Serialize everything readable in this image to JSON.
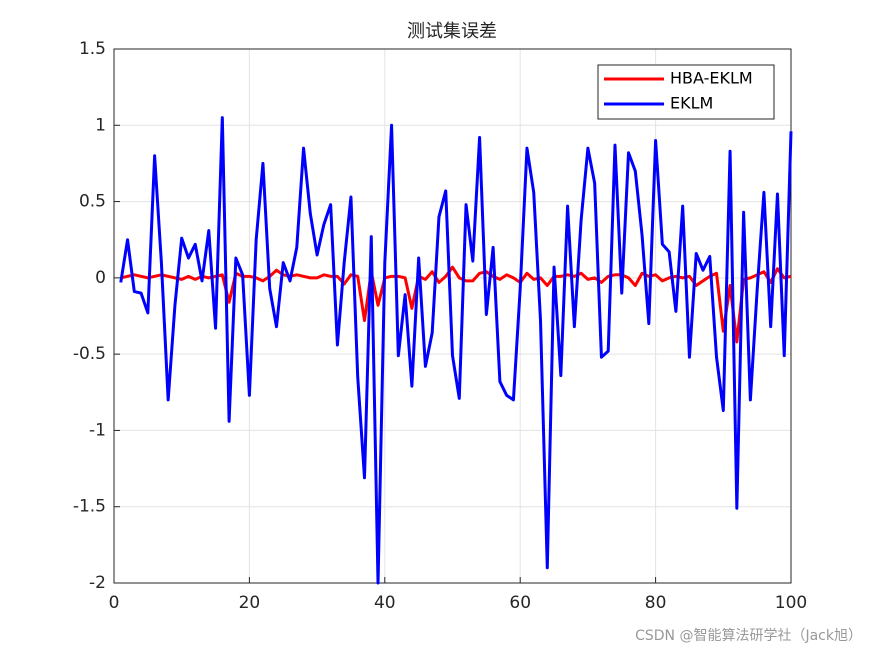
{
  "chart_data": {
    "type": "line",
    "title": "测试集误差",
    "x": [
      1,
      2,
      3,
      4,
      5,
      6,
      7,
      8,
      9,
      10,
      11,
      12,
      13,
      14,
      15,
      16,
      17,
      18,
      19,
      20,
      21,
      22,
      23,
      24,
      25,
      26,
      27,
      28,
      29,
      30,
      31,
      32,
      33,
      34,
      35,
      36,
      37,
      38,
      39,
      40,
      41,
      42,
      43,
      44,
      45,
      46,
      47,
      48,
      49,
      50,
      51,
      52,
      53,
      54,
      55,
      56,
      57,
      58,
      59,
      60,
      61,
      62,
      63,
      64,
      65,
      66,
      67,
      68,
      69,
      70,
      71,
      72,
      73,
      74,
      75,
      76,
      77,
      78,
      79,
      80,
      81,
      82,
      83,
      84,
      85,
      86,
      87,
      88,
      89,
      90,
      91,
      92,
      93,
      94,
      95,
      96,
      97,
      98,
      99,
      100
    ],
    "series": [
      {
        "name": "HBA-EKLM",
        "color": "#ff0000",
        "values": [
          0,
          0.01,
          0.02,
          0.01,
          0,
          0.01,
          0.02,
          0.01,
          0,
          -0.01,
          0.01,
          -0.01,
          0.01,
          0,
          0.01,
          0.02,
          -0.16,
          0.03,
          0.01,
          0.01,
          0,
          -0.02,
          0.01,
          0.05,
          0.02,
          0.01,
          0.02,
          0.01,
          0,
          0,
          0.02,
          0.01,
          0.01,
          -0.04,
          0.02,
          0.01,
          -0.28,
          0.04,
          -0.18,
          0,
          0.01,
          0.01,
          0,
          -0.2,
          0.01,
          -0.01,
          0.04,
          -0.03,
          0.01,
          0.07,
          0,
          -0.02,
          -0.02,
          0.03,
          0.04,
          0.01,
          -0.01,
          0.02,
          0,
          -0.03,
          0.03,
          -0.01,
          0,
          -0.05,
          0.01,
          0.01,
          0.02,
          0.01,
          0.03,
          -0.01,
          0,
          -0.03,
          0.01,
          0.02,
          0.02,
          0,
          -0.05,
          0.03,
          0.01,
          0.02,
          -0.02,
          0,
          0.01,
          0,
          0.01,
          -0.05,
          -0.02,
          0.01,
          0.03,
          -0.35,
          -0.05,
          -0.42,
          -0.01,
          0,
          0.02,
          0.04,
          -0.03,
          0.06,
          0,
          0.01
        ]
      },
      {
        "name": "EKLM",
        "color": "#0000ff",
        "values": [
          -0.03,
          0.25,
          -0.09,
          -0.1,
          -0.23,
          0.8,
          0.1,
          -0.8,
          -0.18,
          0.26,
          0.13,
          0.22,
          -0.02,
          0.31,
          -0.33,
          1.05,
          -0.94,
          0.13,
          0.02,
          -0.77,
          0.25,
          0.75,
          -0.07,
          -0.32,
          0.1,
          -0.02,
          0.2,
          0.85,
          0.42,
          0.15,
          0.35,
          0.48,
          -0.44,
          0.1,
          0.53,
          -0.65,
          -1.31,
          0.27,
          -2.0,
          0.1,
          1.0,
          -0.51,
          -0.11,
          -0.71,
          0.13,
          -0.58,
          -0.36,
          0.4,
          0.57,
          -0.51,
          -0.79,
          0.48,
          0.11,
          0.92,
          -0.24,
          0.2,
          -0.68,
          -0.77,
          -0.8,
          -0.07,
          0.85,
          0.56,
          -0.28,
          -1.9,
          0.07,
          -0.64,
          0.47,
          -0.32,
          0.38,
          0.85,
          0.62,
          -0.52,
          -0.48,
          0.87,
          -0.1,
          0.82,
          0.7,
          0.28,
          -0.3,
          0.9,
          0.22,
          0.17,
          -0.22,
          0.47,
          -0.52,
          0.16,
          0.05,
          0.14,
          -0.52,
          -0.87,
          0.83,
          -1.51,
          0.43,
          -0.8,
          -0.08,
          0.56,
          -0.32,
          0.55,
          -0.51,
          0.96
        ]
      }
    ],
    "xlim": [
      0,
      100
    ],
    "xticks": [
      0,
      20,
      40,
      60,
      80,
      100
    ],
    "ylim": [
      -2,
      1.5
    ],
    "yticks": [
      -2,
      -1.5,
      -1,
      -0.5,
      0,
      0.5,
      1,
      1.5
    ],
    "grid": true,
    "legend": "top-right",
    "watermark": "CSDN @智能算法研学社（Jack旭）"
  }
}
